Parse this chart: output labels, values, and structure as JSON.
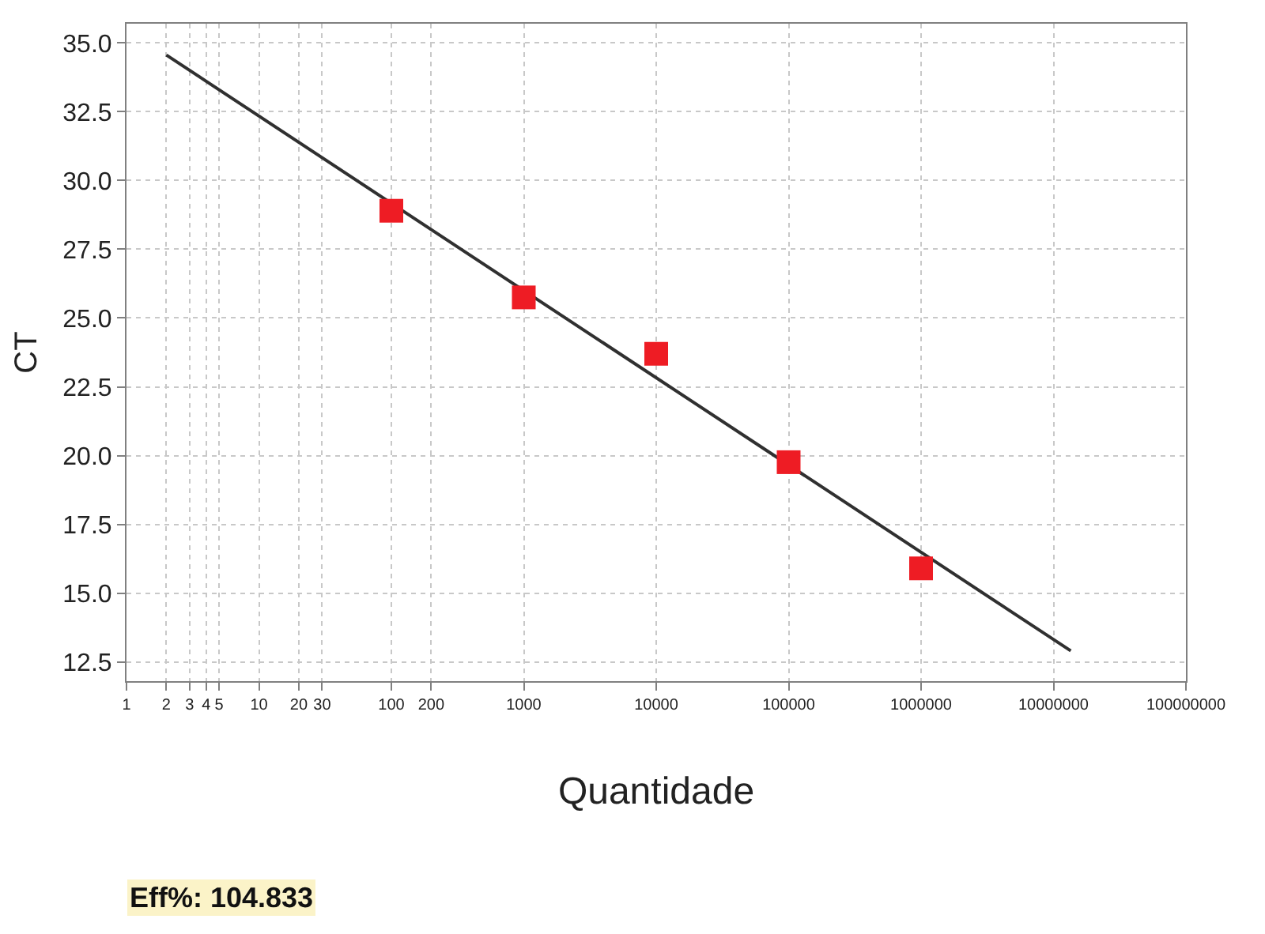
{
  "chart_data": {
    "type": "scatter",
    "xlabel": "Quantidade",
    "ylabel": "CT",
    "log": "x",
    "xlim": [
      1,
      100000000
    ],
    "xticks": [
      1,
      2,
      3,
      4,
      5,
      10,
      20,
      30,
      100,
      200,
      1000,
      10000,
      100000,
      1000000,
      10000000,
      100000000
    ],
    "ylim": [
      11.8,
      35.7
    ],
    "yticks": [
      {
        "value": 12.5,
        "label": "12.5"
      },
      {
        "value": 15,
        "label": "15.0"
      },
      {
        "value": 17.5,
        "label": "17.5"
      },
      {
        "value": 20,
        "label": "20.0"
      },
      {
        "value": 22.5,
        "label": "22.5"
      },
      {
        "value": 25,
        "label": "25.0"
      },
      {
        "value": 27.5,
        "label": "27.5"
      },
      {
        "value": 30,
        "label": "30.0"
      },
      {
        "value": 32.5,
        "label": "32.5"
      },
      {
        "value": 35,
        "label": "35.0"
      }
    ],
    "grid": true,
    "series": [
      {
        "type": "line",
        "color": "#303030",
        "marker": "none",
        "line_style": "solid",
        "x": [
          2,
          13500000
        ],
        "values": [
          34.56,
          12.9
        ]
      },
      {
        "color": "#ee1c24",
        "marker": "square",
        "x": [
          100,
          1000,
          10000,
          100000,
          1000000
        ],
        "values": [
          28.9,
          25.75,
          23.7,
          19.76,
          15.9
        ]
      }
    ],
    "annotations": [
      "Eff%: 104.833"
    ]
  }
}
